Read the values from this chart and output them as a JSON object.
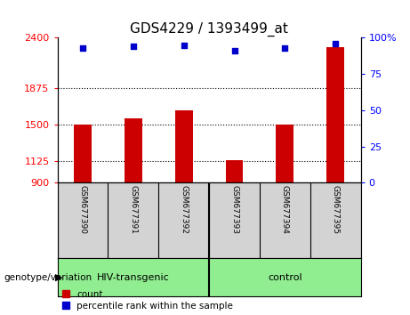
{
  "title": "GDS4229 / 1393499_at",
  "samples": [
    "GSM677390",
    "GSM677391",
    "GSM677392",
    "GSM677393",
    "GSM677394",
    "GSM677395"
  ],
  "counts": [
    1500,
    1570,
    1650,
    1130,
    1500,
    2300
  ],
  "percentile_vals": [
    93,
    94,
    95,
    91,
    93,
    96
  ],
  "ylim_left": [
    900,
    2400
  ],
  "ylim_right": [
    0,
    100
  ],
  "yticks_left": [
    900,
    1125,
    1500,
    1875,
    2400
  ],
  "yticks_right": [
    0,
    25,
    50,
    75,
    100
  ],
  "grid_lines": [
    1125,
    1500,
    1875
  ],
  "bar_color": "#cc0000",
  "scatter_color": "#0000cc",
  "bar_width": 0.35,
  "label_area_color": "#d3d3d3",
  "group_area_color": "#90ee90",
  "legend_count_label": "count",
  "legend_percentile_label": "percentile rank within the sample",
  "group1_label": "HIV-transgenic",
  "group2_label": "control",
  "genotype_label": "genotype/variation"
}
